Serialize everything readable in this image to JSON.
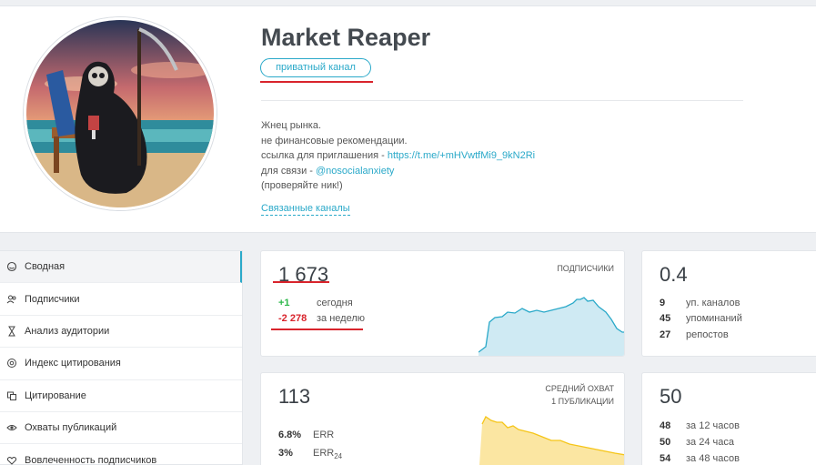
{
  "channel": {
    "title": "Market Reaper",
    "badge": "приватный канал",
    "desc_line1": "Жнец рынка.",
    "desc_line2": "не финансовые рекомендации.",
    "desc_invite_prefix": "ссылка для приглашения - ",
    "invite_link": "https://t.me/+mHVwtfMi9_9kN2Ri",
    "desc_contact_prefix": "для связи - ",
    "contact_link": "@nosocialanxiety",
    "desc_note": "(проверяйте ник!)",
    "related_channels": "Связанные каналы"
  },
  "sidebar": {
    "items": [
      {
        "label": "Сводная",
        "icon": "summary-icon"
      },
      {
        "label": "Подписчики",
        "icon": "users-icon"
      },
      {
        "label": "Анализ аудитории",
        "icon": "hourglass-icon"
      },
      {
        "label": "Индекс цитирования",
        "icon": "at-icon"
      },
      {
        "label": "Цитирование",
        "icon": "quote-icon"
      },
      {
        "label": "Охваты публикаций",
        "icon": "eye-icon"
      },
      {
        "label": "Вовлеченность подписчиков",
        "icon": "engagement-icon"
      }
    ]
  },
  "subscribers_card": {
    "value": "1 673",
    "label": "подписчики",
    "today_value": "+1",
    "today_label": "сегодня",
    "week_value": "-2 278",
    "week_label": "за неделю"
  },
  "citation_card": {
    "value": "0.4",
    "rows": [
      {
        "value": "9",
        "label": "уп. каналов"
      },
      {
        "value": "45",
        "label": "упоминаний"
      },
      {
        "value": "27",
        "label": "репостов"
      }
    ]
  },
  "reach_card": {
    "value": "113",
    "label_line1": "средний охват",
    "label_line2": "1 публикации",
    "err_value": "6.8%",
    "err_label": "ERR",
    "err24_value": "3%",
    "err24_label": "ERR",
    "err24_sub": "24"
  },
  "views_card": {
    "value": "50",
    "rows": [
      {
        "value": "48",
        "label": "за 12 часов"
      },
      {
        "value": "50",
        "label": "за 24 часа"
      },
      {
        "value": "54",
        "label": "за 48 часов"
      }
    ]
  },
  "colors": {
    "accent": "#2aa9c9",
    "positive": "#2eb84b",
    "negative": "#d9242c",
    "sparkline_blue": "#2aa9c9",
    "sparkline_yellow": "#f5c518"
  }
}
